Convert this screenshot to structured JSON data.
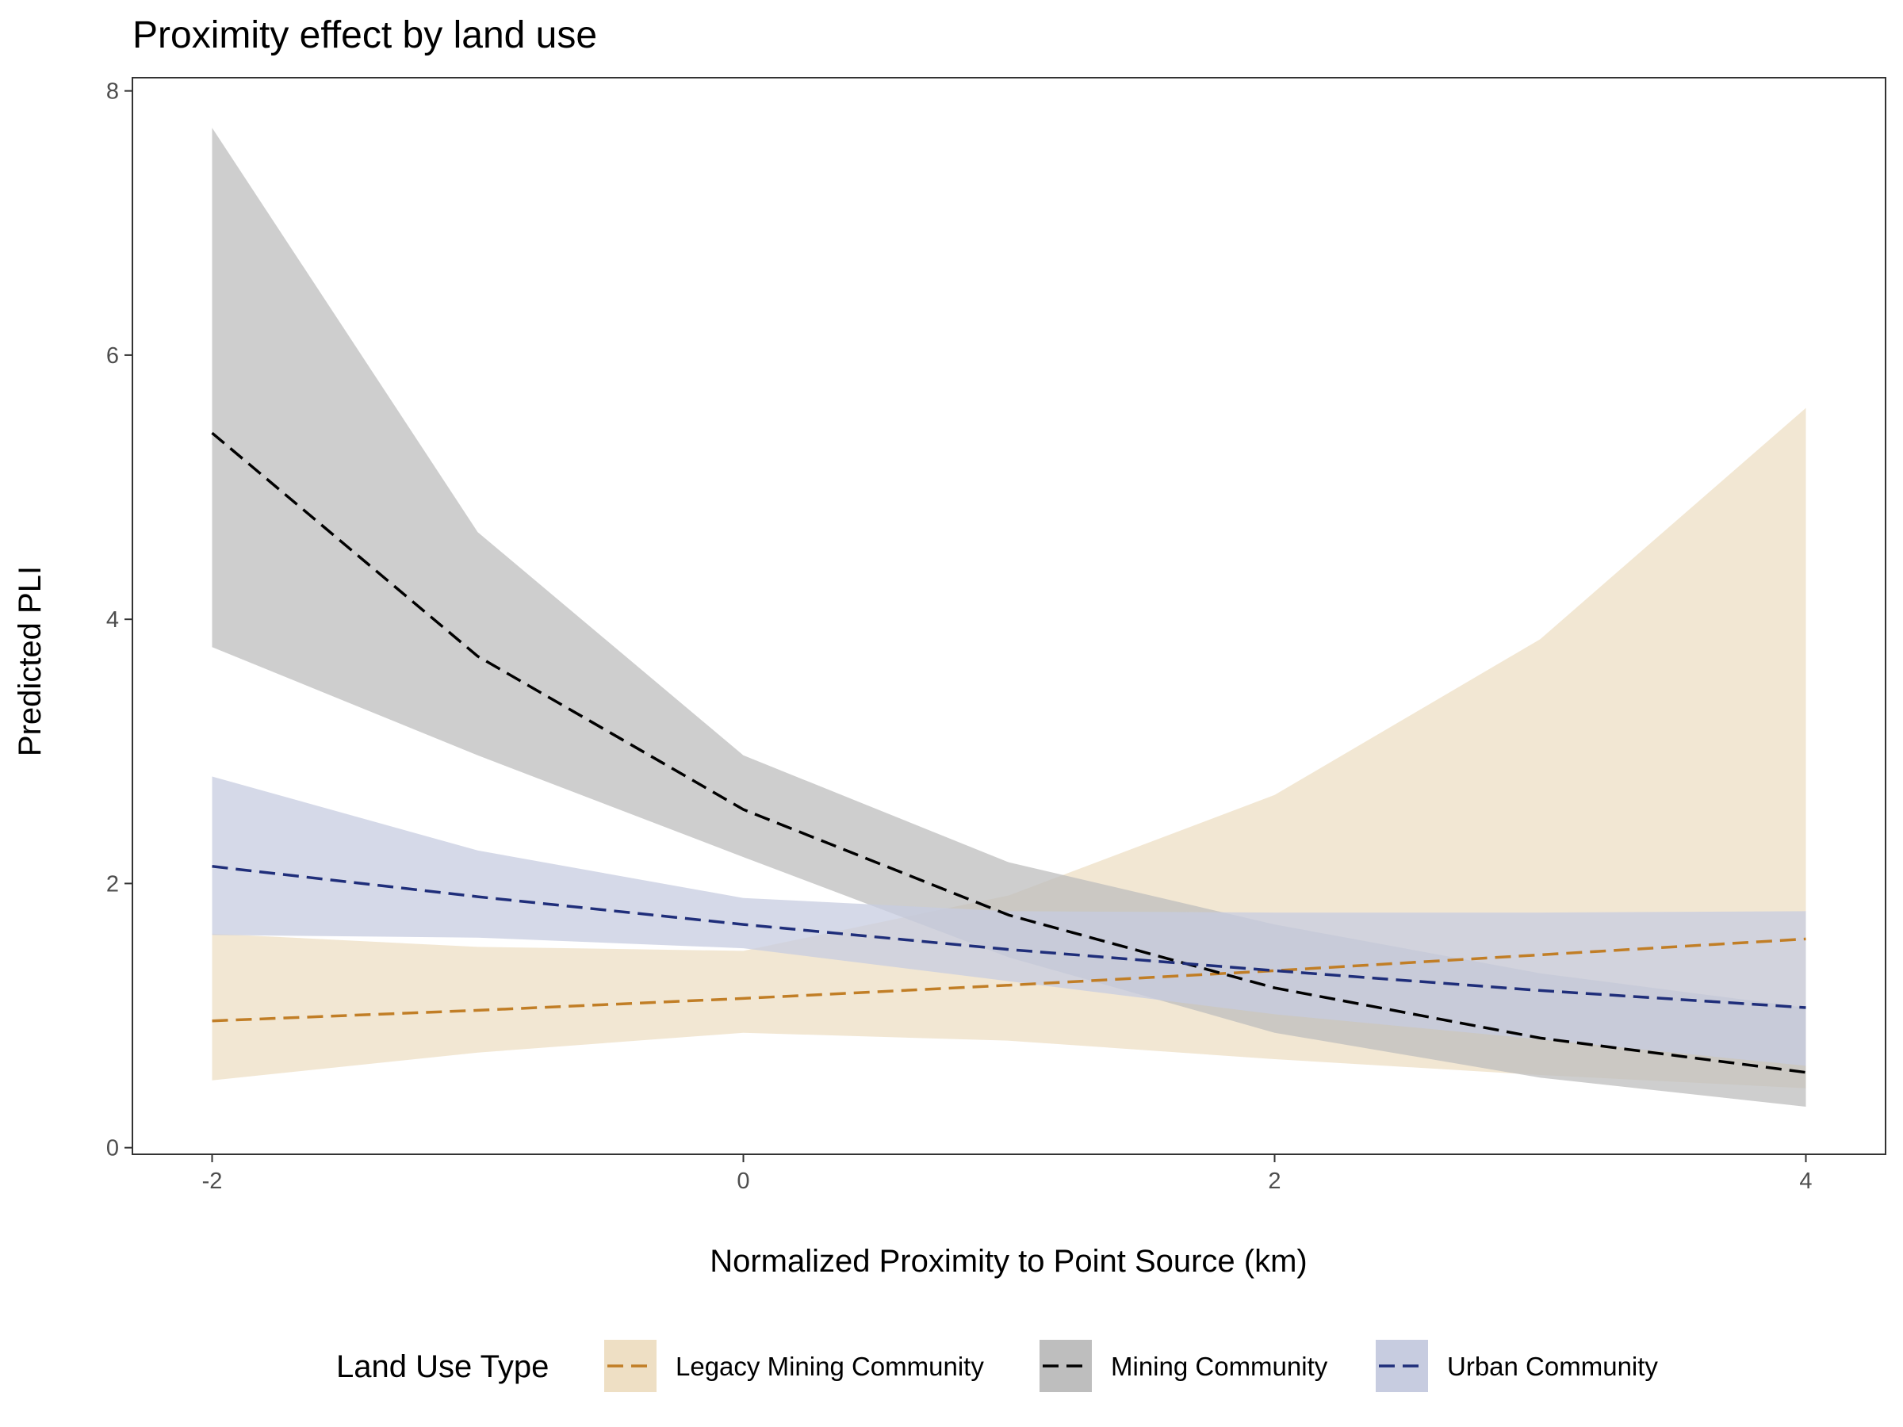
{
  "chart_data": {
    "type": "line",
    "title": "Proximity effect by land use",
    "xlabel": "Normalized Proximity to Point Source (km)",
    "ylabel": "Predicted PLI",
    "xlim": [
      -2.3,
      4.3
    ],
    "ylim": [
      -0.05,
      8.1
    ],
    "x_ticks": [
      -2,
      0,
      2,
      4
    ],
    "x_tick_labels": [
      "-2",
      "0",
      "2",
      "4"
    ],
    "y_ticks": [
      0,
      2,
      4,
      6,
      8
    ],
    "y_tick_labels": [
      "0",
      "2",
      "4",
      "6",
      "8"
    ],
    "grid": false,
    "legend": {
      "title": "Land Use Type",
      "position": "bottom"
    },
    "x": [
      -2,
      -1,
      0,
      1,
      2,
      3,
      4
    ],
    "series": [
      {
        "name": "Legacy Mining Community",
        "color": "#C17E26",
        "fill": "#EEDFC4",
        "values": [
          0.96,
          1.04,
          1.13,
          1.23,
          1.34,
          1.46,
          1.58
        ],
        "lower": [
          0.51,
          0.72,
          0.87,
          0.81,
          0.67,
          0.55,
          0.45
        ],
        "upper": [
          1.62,
          1.52,
          1.49,
          1.91,
          2.67,
          3.85,
          5.6
        ]
      },
      {
        "name": "Mining Community",
        "color": "#000000",
        "fill": "#BEBEBE",
        "values": [
          5.41,
          3.72,
          2.56,
          1.76,
          1.21,
          0.83,
          0.57
        ],
        "lower": [
          3.79,
          2.97,
          2.2,
          1.44,
          0.87,
          0.53,
          0.31
        ],
        "upper": [
          7.72,
          4.66,
          2.97,
          2.16,
          1.69,
          1.32,
          1.06
        ]
      },
      {
        "name": "Urban Community",
        "color": "#1F2E7A",
        "fill": "#C7CCE0",
        "values": [
          2.13,
          1.9,
          1.69,
          1.5,
          1.34,
          1.19,
          1.06
        ],
        "lower": [
          1.61,
          1.59,
          1.51,
          1.26,
          1.01,
          0.82,
          0.62
        ],
        "upper": [
          2.81,
          2.25,
          1.89,
          1.79,
          1.78,
          1.78,
          1.79
        ]
      }
    ]
  }
}
